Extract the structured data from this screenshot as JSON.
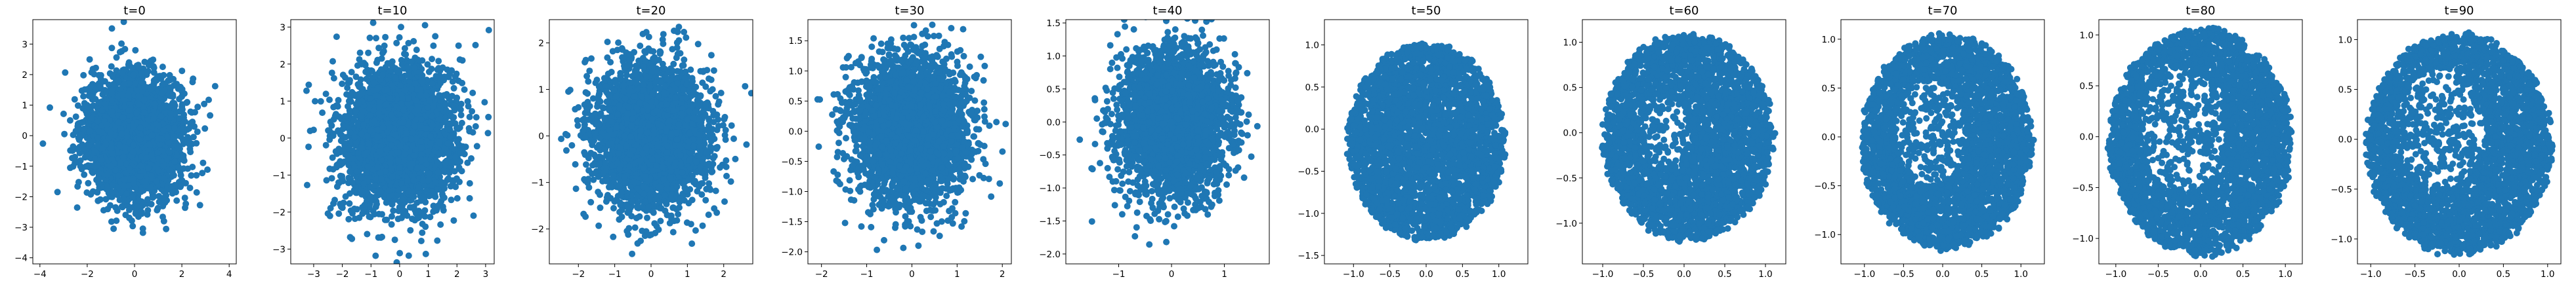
{
  "figure": {
    "background": "#ffffff",
    "marker_color": "#1f77b4",
    "text_color": "#000000"
  },
  "chart_data": [
    {
      "type": "scatter",
      "title": "t=0",
      "grid": false,
      "xlim": [
        -4.3,
        4.3
      ],
      "ylim": [
        -4.2,
        3.8
      ],
      "xticks": [
        -4,
        -2,
        0,
        2,
        4
      ],
      "yticks": [
        -4,
        -3,
        -2,
        -1,
        0,
        1,
        2,
        3
      ],
      "distribution": {
        "shape": "gaussian",
        "center": [
          0.0,
          0.0
        ],
        "spread": [
          1.0,
          1.0
        ]
      }
    },
    {
      "type": "scatter",
      "title": "t=10",
      "grid": false,
      "xlim": [
        -3.8,
        3.3
      ],
      "ylim": [
        -3.4,
        3.2
      ],
      "xticks": [
        -3,
        -2,
        -1,
        0,
        1,
        2,
        3
      ],
      "yticks": [
        -3,
        -2,
        -1,
        0,
        1,
        2,
        3
      ],
      "distribution": {
        "shape": "gaussian",
        "center": [
          0.0,
          0.0
        ],
        "spread": [
          0.95,
          0.95
        ]
      }
    },
    {
      "type": "scatter",
      "title": "t=20",
      "grid": false,
      "xlim": [
        -2.8,
        2.8
      ],
      "ylim": [
        -2.75,
        2.5
      ],
      "xticks": [
        -2,
        -1,
        0,
        1,
        2
      ],
      "yticks": [
        -2,
        -1,
        0,
        1,
        2
      ],
      "distribution": {
        "shape": "gaussian",
        "center": [
          0.0,
          0.0
        ],
        "spread": [
          0.75,
          0.75
        ]
      }
    },
    {
      "type": "scatter",
      "title": "t=30",
      "grid": false,
      "xlim": [
        -2.3,
        2.2
      ],
      "ylim": [
        -2.2,
        1.85
      ],
      "xticks": [
        -2,
        -1,
        0,
        1,
        2
      ],
      "yticks": [
        -2.0,
        -1.5,
        -1.0,
        -0.5,
        0.0,
        0.5,
        1.0,
        1.5
      ],
      "tick_labels_y": [
        "−2.0",
        "−1.5",
        "−1.0",
        "−0.5",
        "0.0",
        "0.5",
        "1.0",
        "1.5"
      ],
      "distribution": {
        "shape": "gaussian",
        "center": [
          0.0,
          0.0
        ],
        "spread": [
          0.62,
          0.6
        ]
      }
    },
    {
      "type": "scatter",
      "title": "t=40",
      "grid": false,
      "xlim": [
        -2.0,
        1.85
      ],
      "ylim": [
        -2.15,
        1.55
      ],
      "xticks": [
        -1,
        0,
        1
      ],
      "yticks": [
        -2.0,
        -1.5,
        -1.0,
        -0.5,
        0.0,
        0.5,
        1.0,
        1.5
      ],
      "tick_labels_y": [
        "−2.0",
        "−1.5",
        "−1.0",
        "−0.5",
        "0.0",
        "0.5",
        "1.0",
        "1.5"
      ],
      "distribution": {
        "shape": "gaussian",
        "center": [
          0.0,
          0.0
        ],
        "spread": [
          0.5,
          0.55
        ]
      }
    },
    {
      "type": "scatter",
      "title": "t=50",
      "grid": false,
      "xlim": [
        -1.4,
        1.4
      ],
      "ylim": [
        -1.6,
        1.3
      ],
      "xticks": [
        -1.0,
        -0.5,
        0.0,
        0.5,
        1.0
      ],
      "yticks": [
        -1.5,
        -1.0,
        -0.5,
        0.0,
        0.5,
        1.0
      ],
      "tick_labels_x": [
        "−1.0",
        "−0.5",
        "0.0",
        "0.5",
        "1.0"
      ],
      "tick_labels_y": [
        "−1.5",
        "−1.0",
        "−0.5",
        "0.0",
        "0.5",
        "1.0"
      ],
      "distribution": {
        "shape": "disk",
        "center": [
          0.0,
          -0.15
        ],
        "spread": [
          1.08,
          1.18
        ]
      }
    },
    {
      "type": "scatter",
      "title": "t=60",
      "grid": false,
      "xlim": [
        -1.25,
        1.25
      ],
      "ylim": [
        -1.45,
        1.25
      ],
      "xticks": [
        -1.0,
        -0.5,
        0.0,
        0.5,
        1.0
      ],
      "yticks": [
        -1.0,
        -0.5,
        0.0,
        0.5,
        1.0
      ],
      "tick_labels_x": [
        "−1.0",
        "−0.5",
        "0.0",
        "0.5",
        "1.0"
      ],
      "tick_labels_y": [
        "−1.0",
        "−0.5",
        "0.0",
        "0.5",
        "1.0"
      ],
      "distribution": {
        "shape": "disk",
        "center": [
          0.05,
          -0.05
        ],
        "spread": [
          1.05,
          1.15
        ],
        "gap": [
          -0.2,
          0.0,
          0.3,
          0.35
        ]
      }
    },
    {
      "type": "scatter",
      "title": "t=70",
      "grid": false,
      "xlim": [
        -1.3,
        1.3
      ],
      "ylim": [
        -1.3,
        1.2
      ],
      "xticks": [
        -1.0,
        -0.5,
        0.0,
        0.5,
        1.0
      ],
      "yticks": [
        -1.0,
        -0.5,
        0.0,
        0.5,
        1.0
      ],
      "tick_labels_x": [
        "−1.0",
        "−0.5",
        "0.0",
        "0.5",
        "1.0"
      ],
      "tick_labels_y": [
        "−1.0",
        "−0.5",
        "0.0",
        "0.5",
        "1.0"
      ],
      "distribution": {
        "shape": "disk",
        "center": [
          0.05,
          -0.05
        ],
        "spread": [
          1.1,
          1.1
        ],
        "gap": [
          -0.15,
          0.05,
          0.45,
          0.55
        ]
      }
    },
    {
      "type": "scatter",
      "title": "t=80",
      "grid": false,
      "xlim": [
        -1.2,
        1.2
      ],
      "ylim": [
        -1.25,
        1.15
      ],
      "xticks": [
        -1.0,
        -0.5,
        0.0,
        0.5,
        1.0
      ],
      "yticks": [
        -1.0,
        -0.5,
        0.0,
        0.5,
        1.0
      ],
      "tick_labels_x": [
        "−1.0",
        "−0.5",
        "0.0",
        "0.5",
        "1.0"
      ],
      "tick_labels_y": [
        "−1.0",
        "−0.5",
        "0.0",
        "0.5",
        "1.0"
      ],
      "distribution": {
        "shape": "disk",
        "center": [
          0.0,
          -0.05
        ],
        "spread": [
          1.08,
          1.12
        ],
        "gap": [
          -0.2,
          0.05,
          0.5,
          0.6
        ]
      }
    },
    {
      "type": "scatter",
      "title": "t=90",
      "grid": false,
      "xlim": [
        -1.15,
        1.15
      ],
      "ylim": [
        -1.25,
        1.2
      ],
      "xticks": [
        -1.0,
        -0.5,
        0.0,
        0.5,
        1.0
      ],
      "yticks": [
        -1.0,
        -0.5,
        0.0,
        0.5,
        1.0
      ],
      "tick_labels_x": [
        "−1.0",
        "−0.5",
        "0.0",
        "0.5",
        "1.0"
      ],
      "tick_labels_y": [
        "−1.0",
        "−0.5",
        "0.0",
        "0.5",
        "1.0"
      ],
      "distribution": {
        "shape": "disk",
        "center": [
          0.0,
          -0.05
        ],
        "spread": [
          1.05,
          1.12
        ],
        "gap": [
          -0.2,
          0.1,
          0.5,
          0.6
        ]
      }
    }
  ]
}
